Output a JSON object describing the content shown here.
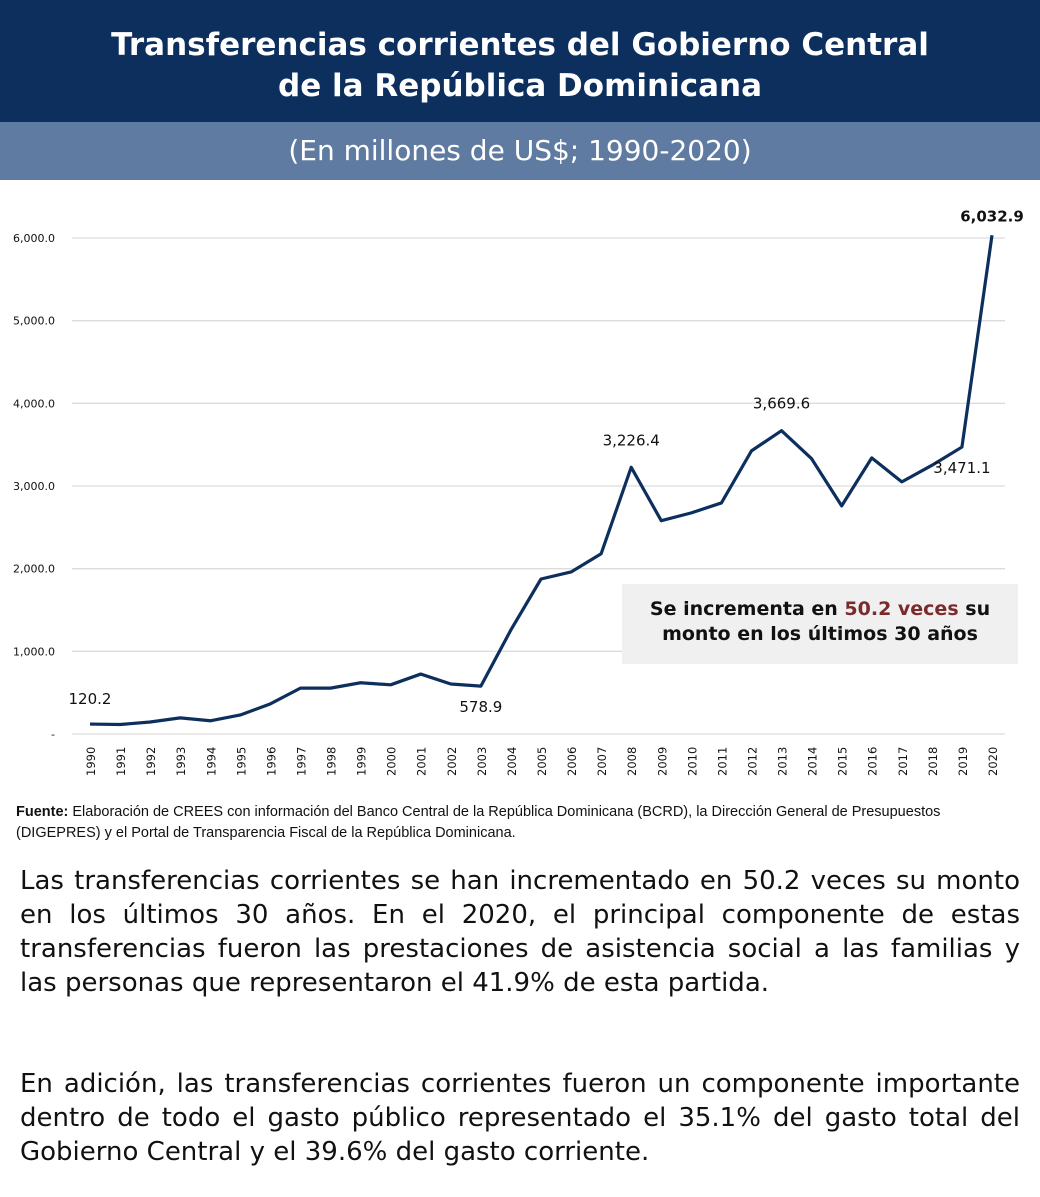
{
  "header": {
    "title_line1": "Transferencias corrientes del Gobierno Central",
    "title_line2": "de la República Dominicana",
    "subtitle": "(En millones de US$; 1990-2020)"
  },
  "callout": {
    "pre": "Se incrementa en ",
    "highlight": "50.2 veces",
    "post": " su monto en los últimos 30 años"
  },
  "source": {
    "label": "Fuente:",
    "text": " Elaboración de CREES con información del Banco Central de la República Dominicana (BCRD), la Dirección General de Presupuestos (DIGEPRES) y el Portal de Transparencia Fiscal de la República Dominicana."
  },
  "paragraphs": [
    "Las transferencias corrientes se han incrementado en 50.2 veces su monto en los últimos 30 años. En el 2020, el principal componente de estas transferencias fueron las prestaciones de asistencia social a las familias y las personas que representaron el 41.9% de esta partida.",
    "En adición, las transferencias corrientes fueron un componente importante dentro de todo el gasto público representado el 35.1% del gasto total del Gobierno Central y el 39.6% del gasto corriente."
  ],
  "colors": {
    "line": "#0d2f5e",
    "header": "#0d2f5e",
    "subheader": "#5f7ba1",
    "highlight": "#7b2b2b"
  },
  "chart_data": {
    "type": "line",
    "title": "Transferencias corrientes del Gobierno Central de la República Dominicana",
    "ylabel": "En millones de US$",
    "ylim": [
      0,
      6000
    ],
    "yticks": [
      0,
      1000,
      2000,
      3000,
      4000,
      5000,
      6000
    ],
    "ytick_labels": [
      "-",
      "1,000.0",
      "2,000.0",
      "3,000.0",
      "4,000.0",
      "5,000.0",
      "6,000.0"
    ],
    "x": [
      "1990",
      "1991",
      "1992",
      "1993",
      "1994",
      "1995",
      "1996",
      "1997",
      "1998",
      "1999",
      "2000",
      "2001",
      "2002",
      "2003",
      "2004",
      "2005",
      "2006",
      "2007",
      "2008",
      "2009",
      "2010",
      "2011",
      "2012",
      "2013",
      "2014",
      "2015",
      "2016",
      "2017",
      "2018",
      "2019",
      "2020"
    ],
    "series": [
      {
        "name": "Transferencias corrientes",
        "values": [
          120.2,
          115,
          145,
          195,
          160,
          230,
          365,
          555,
          555,
          620,
          595,
          725,
          605,
          578.9,
          1260,
          1875,
          1960,
          2180,
          3226.4,
          2580,
          2675,
          2795,
          3425,
          3669.6,
          3330,
          2760,
          3340,
          3050,
          3250,
          3471.1,
          6032.9
        ]
      }
    ],
    "data_labels": [
      {
        "index": 0,
        "text": "120.2"
      },
      {
        "index": 13,
        "text": "578.9"
      },
      {
        "index": 18,
        "text": "3,226.4"
      },
      {
        "index": 23,
        "text": "3,669.6"
      },
      {
        "index": 29,
        "text": "3,471.1"
      },
      {
        "index": 30,
        "text": "6,032.9"
      }
    ],
    "grid": true
  }
}
